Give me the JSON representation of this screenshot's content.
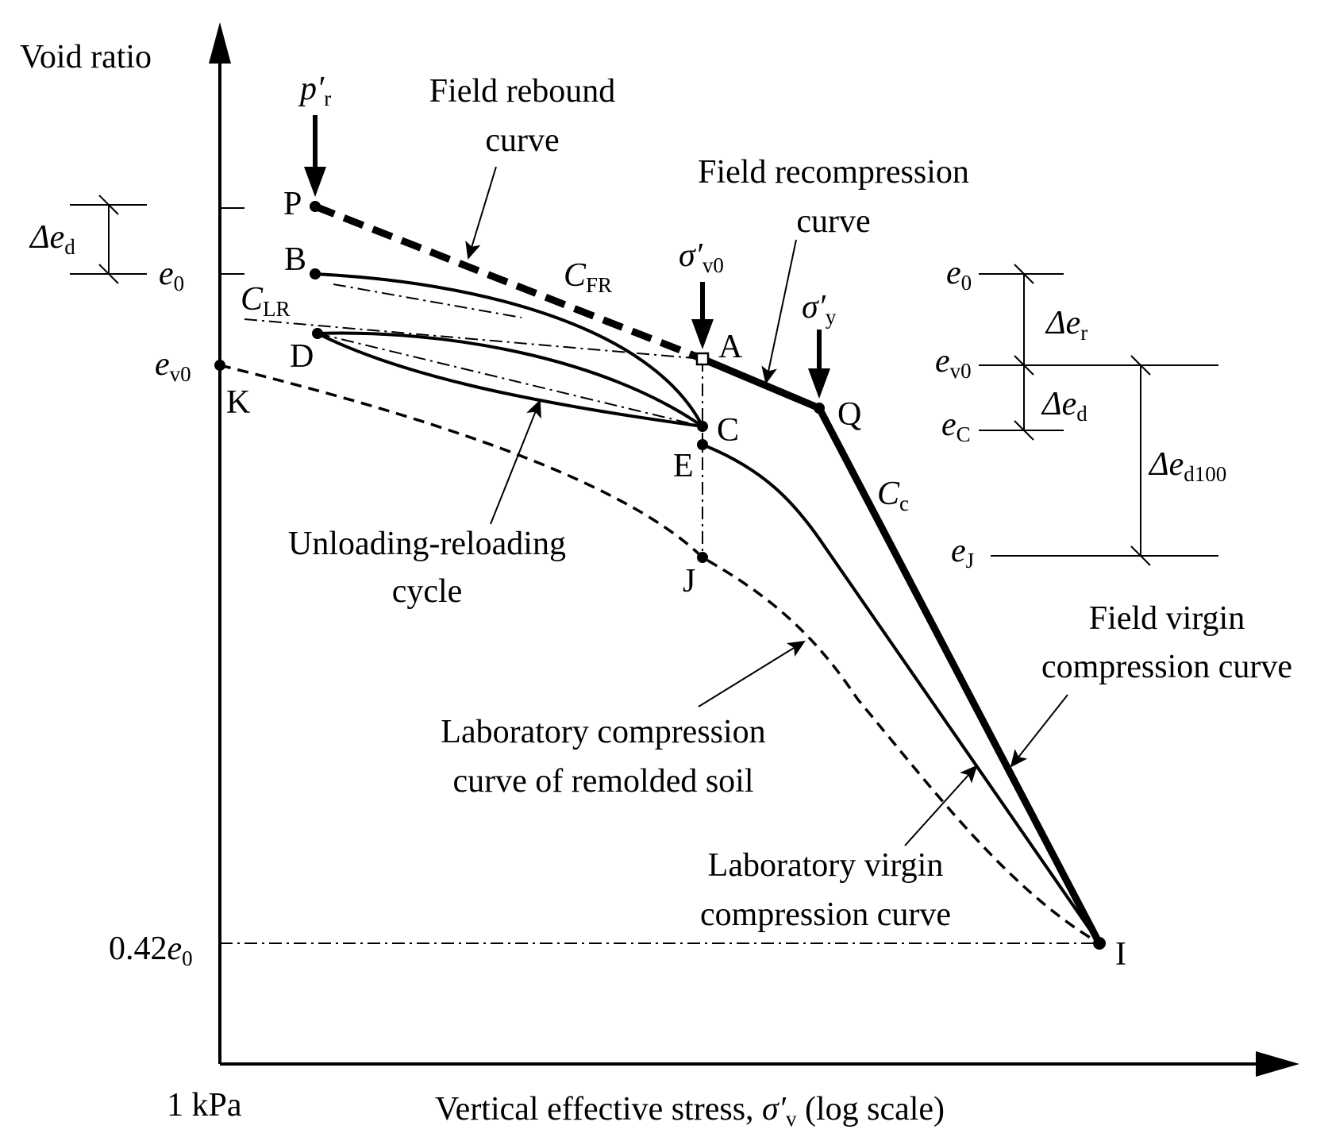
{
  "axes": {
    "y_label": "Void ratio",
    "x_label_main": "Vertical effective stress, ",
    "x_label_sigma": "σ′",
    "x_label_sub": "v",
    "x_label_tail": " (log scale)",
    "x_origin_label": "1 kPa"
  },
  "left_labels": {
    "delta_ed": {
      "sym": "Δe",
      "sub": "d"
    },
    "e0": {
      "sym": "e",
      "sub": "0"
    },
    "ev0": {
      "sym": "e",
      "sub": "v0"
    },
    "c_lr": {
      "sym": "C",
      "sub": "LR"
    },
    "bottom": {
      "prefix": "0.42",
      "sym": "e",
      "sub": "0"
    }
  },
  "stress_markers": {
    "pr": {
      "sym": "p′",
      "sub": "r"
    },
    "sv0": {
      "sym": "σ′",
      "sub": "v0"
    },
    "sy": {
      "sym": "σ′",
      "sub": "y"
    }
  },
  "points": {
    "P": "P",
    "B": "B",
    "D": "D",
    "K": "K",
    "A": "A",
    "C": "C",
    "E": "E",
    "J": "J",
    "Q": "Q",
    "I": "I"
  },
  "coefficients": {
    "c_fr": {
      "sym": "C",
      "sub": "FR"
    },
    "c_c": {
      "sym": "C",
      "sub": "c"
    }
  },
  "annotations": {
    "field_rebound": [
      "Field rebound",
      "curve"
    ],
    "field_recompression": [
      "Field recompression",
      "curve"
    ],
    "unloading_reloading": [
      "Unloading-reloading",
      "cycle"
    ],
    "field_virgin": [
      "Field virgin",
      "compression curve"
    ],
    "lab_remolded": [
      "Laboratory compression",
      "curve of remolded soil"
    ],
    "lab_virgin": [
      "Laboratory virgin",
      "compression curve"
    ]
  },
  "right_scale": {
    "e0": {
      "sym": "e",
      "sub": "0"
    },
    "ev0": {
      "sym": "e",
      "sub": "v0"
    },
    "eC": {
      "sym": "e",
      "sub": "C"
    },
    "eJ": {
      "sym": "e",
      "sub": "J"
    },
    "delta_er": {
      "sym": "Δe",
      "sub": "r"
    },
    "delta_ed": {
      "sym": "Δe",
      "sub": "d"
    },
    "delta_ed100": {
      "sym": "Δe",
      "sub": "d100"
    }
  }
}
